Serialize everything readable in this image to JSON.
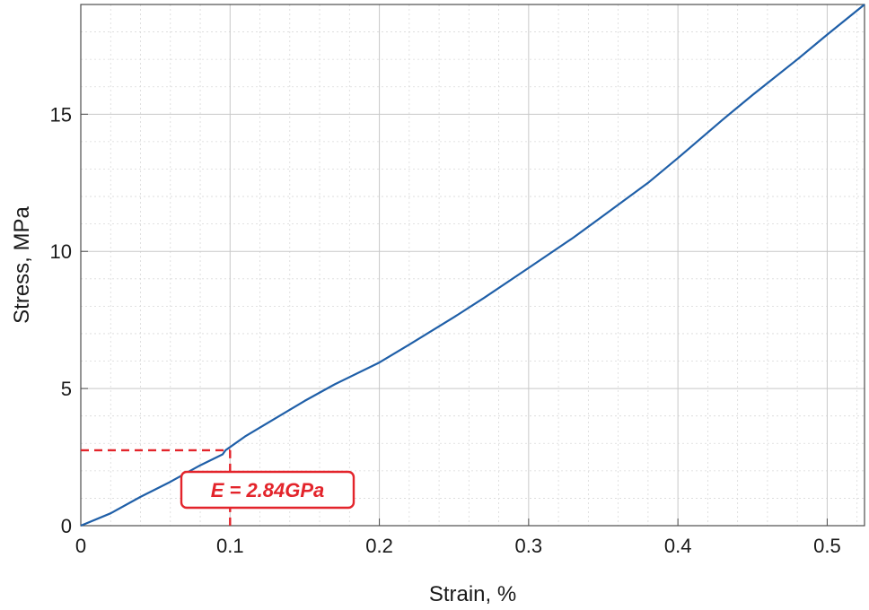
{
  "chart_data": {
    "type": "line",
    "xlabel": "Strain, %",
    "ylabel": "Stress, MPa",
    "xlim": [
      0,
      0.525
    ],
    "ylim": [
      0,
      19
    ],
    "x_ticks": [
      0,
      0.1,
      0.2,
      0.3,
      0.4,
      0.5
    ],
    "x_tick_labels": [
      "0",
      "0.1",
      "0.2",
      "0.3",
      "0.4",
      "0.5"
    ],
    "y_ticks": [
      0,
      5,
      10,
      15
    ],
    "y_tick_labels": [
      "0",
      "5",
      "10",
      "15"
    ],
    "grid": true,
    "series": [
      {
        "color": "#1f5fa8",
        "x": [
          0,
          0.02,
          0.04,
          0.06,
          0.08,
          0.095,
          0.097,
          0.11,
          0.13,
          0.15,
          0.17,
          0.2,
          0.22,
          0.25,
          0.27,
          0.3,
          0.33,
          0.35,
          0.38,
          0.4,
          0.43,
          0.45,
          0.48,
          0.5,
          0.525
        ],
        "y": [
          0,
          0.45,
          1.05,
          1.6,
          2.2,
          2.6,
          2.75,
          3.25,
          3.9,
          4.55,
          5.15,
          5.95,
          6.6,
          7.6,
          8.3,
          9.4,
          10.5,
          11.3,
          12.5,
          13.4,
          14.8,
          15.7,
          17.0,
          17.9,
          19.0
        ]
      }
    ],
    "annotations": [
      {
        "text": "E = 2.84GPa",
        "color": "#e3242b",
        "ref_x": 0.1,
        "ref_y": 2.75
      }
    ]
  }
}
